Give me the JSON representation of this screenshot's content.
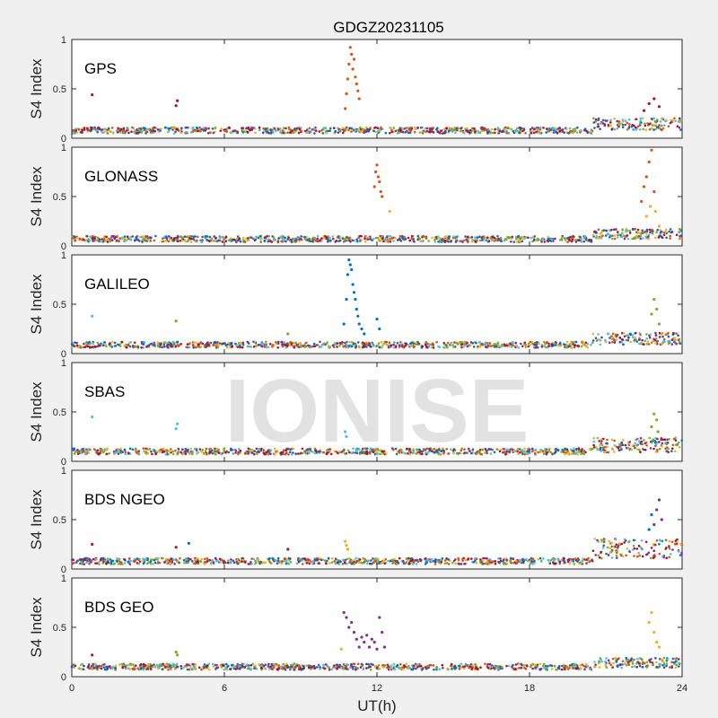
{
  "figure": {
    "title": "GDGZ20231105",
    "watermark": "IONISE"
  },
  "colors": [
    "#0072bd",
    "#d95319",
    "#edb120",
    "#7e2f8e",
    "#77ac30",
    "#4dbeee",
    "#a2142f"
  ],
  "chart_data": [
    {
      "type": "scatter",
      "panel": "GPS",
      "ylabel": "S4 Index",
      "xlabel": "",
      "xlim": [
        0,
        24
      ],
      "ylim": [
        0,
        1
      ],
      "xticks": [
        0,
        6,
        12,
        18,
        24
      ],
      "xtick_labels": [
        "",
        "",
        "",
        "",
        ""
      ],
      "yticks": [
        0,
        0.5,
        1
      ],
      "ytick_labels": [
        "0",
        "0.5",
        "1"
      ],
      "baseline": 0.08,
      "tail": {
        "start": 20.5,
        "level": 0.14,
        "spread": 0.12
      },
      "series": [
        {
          "color_index": 1,
          "x": [
            10.75,
            10.8,
            10.85,
            10.9,
            10.95,
            11.0,
            11.05,
            11.1,
            11.15,
            11.2,
            11.25,
            11.3
          ],
          "y": [
            0.3,
            0.45,
            0.6,
            0.75,
            0.92,
            0.85,
            0.7,
            0.8,
            0.62,
            0.55,
            0.48,
            0.4
          ]
        },
        {
          "color_index": 6,
          "x": [
            0.8,
            4.1,
            4.15,
            22.5,
            22.7,
            22.9,
            23.1
          ],
          "y": [
            0.44,
            0.33,
            0.38,
            0.28,
            0.35,
            0.4,
            0.32
          ]
        }
      ]
    },
    {
      "type": "scatter",
      "panel": "GLONASS",
      "ylabel": "S4 Index",
      "xlabel": "",
      "xlim": [
        0,
        24
      ],
      "ylim": [
        0,
        1
      ],
      "xticks": [
        0,
        6,
        12,
        18,
        24
      ],
      "xtick_labels": [
        "",
        "",
        "",
        "",
        ""
      ],
      "yticks": [
        0,
        0.5,
        1
      ],
      "ytick_labels": [
        "0",
        "0.5",
        "1"
      ],
      "baseline": 0.07,
      "tail": {
        "start": 20.5,
        "level": 0.12,
        "spread": 0.1
      },
      "series": [
        {
          "color_index": 1,
          "x": [
            11.9,
            11.95,
            12.0,
            12.05,
            12.1,
            12.15,
            12.2,
            22.4,
            22.5,
            22.6,
            22.7,
            22.8,
            22.9
          ],
          "y": [
            0.6,
            0.75,
            0.82,
            0.7,
            0.65,
            0.55,
            0.5,
            0.45,
            0.6,
            0.7,
            0.85,
            0.97,
            0.55
          ]
        },
        {
          "color_index": 2,
          "x": [
            12.5,
            22.6,
            22.75,
            22.95,
            23.1
          ],
          "y": [
            0.35,
            0.3,
            0.4,
            0.35,
            0.2
          ]
        }
      ]
    },
    {
      "type": "scatter",
      "panel": "GALILEO",
      "ylabel": "S4 Index",
      "xlabel": "",
      "xlim": [
        0,
        24
      ],
      "ylim": [
        0,
        1
      ],
      "xticks": [
        0,
        6,
        12,
        18,
        24
      ],
      "xtick_labels": [
        "",
        "",
        "",
        "",
        ""
      ],
      "yticks": [
        0,
        0.5,
        1
      ],
      "ytick_labels": [
        "0",
        "0.5",
        "1"
      ],
      "baseline": 0.09,
      "tail": {
        "start": 20.5,
        "level": 0.15,
        "spread": 0.12
      },
      "series": [
        {
          "color_index": 0,
          "x": [
            10.7,
            10.8,
            10.85,
            10.9,
            10.95,
            11.0,
            11.05,
            11.1,
            11.15,
            11.2,
            11.25,
            11.3,
            11.4,
            11.5,
            12.0,
            12.1
          ],
          "y": [
            0.3,
            0.55,
            0.8,
            0.95,
            0.9,
            0.85,
            0.7,
            0.62,
            0.55,
            0.45,
            0.38,
            0.3,
            0.25,
            0.2,
            0.35,
            0.25
          ]
        },
        {
          "color_index": 4,
          "x": [
            4.1,
            8.5,
            22.8,
            22.9,
            23.0,
            23.1
          ],
          "y": [
            0.33,
            0.2,
            0.4,
            0.55,
            0.45,
            0.3
          ]
        },
        {
          "color_index": 5,
          "x": [
            0.8
          ],
          "y": [
            0.38
          ]
        }
      ]
    },
    {
      "type": "scatter",
      "panel": "SBAS",
      "ylabel": "S4 Index",
      "xlabel": "",
      "xlim": [
        0,
        24
      ],
      "ylim": [
        0,
        1
      ],
      "xticks": [
        0,
        6,
        12,
        18,
        24
      ],
      "xtick_labels": [
        "",
        "",
        "",
        "",
        ""
      ],
      "yticks": [
        0,
        0.5,
        1
      ],
      "ytick_labels": [
        "0",
        "0.5",
        "1"
      ],
      "baseline": 0.1,
      "tail": {
        "start": 20.5,
        "level": 0.15,
        "spread": 0.15
      },
      "series": [
        {
          "color_index": 5,
          "x": [
            0.8,
            4.1,
            4.15,
            10.75,
            10.8
          ],
          "y": [
            0.45,
            0.33,
            0.38,
            0.3,
            0.25
          ]
        },
        {
          "color_index": 4,
          "x": [
            22.8,
            22.9,
            23.0,
            23.05
          ],
          "y": [
            0.35,
            0.48,
            0.42,
            0.3
          ]
        }
      ]
    },
    {
      "type": "scatter",
      "panel": "BDS NGEO",
      "ylabel": "S4 Index",
      "xlabel": "",
      "xlim": [
        0,
        24
      ],
      "ylim": [
        0,
        1
      ],
      "xticks": [
        0,
        6,
        12,
        18,
        24
      ],
      "xtick_labels": [
        "",
        "",
        "",
        "",
        ""
      ],
      "yticks": [
        0,
        0.5,
        1
      ],
      "ytick_labels": [
        "0",
        "0.5",
        "1"
      ],
      "baseline": 0.08,
      "tail": {
        "start": 20.5,
        "level": 0.18,
        "spread": 0.2
      },
      "series": [
        {
          "color_index": 6,
          "x": [
            0.8,
            4.1,
            8.5
          ],
          "y": [
            0.25,
            0.22,
            0.2
          ]
        },
        {
          "color_index": 2,
          "x": [
            10.75,
            10.8,
            10.85
          ],
          "y": [
            0.28,
            0.24,
            0.2
          ]
        },
        {
          "color_index": 3,
          "x": [
            22.9,
            23.0,
            23.1,
            23.2
          ],
          "y": [
            0.45,
            0.6,
            0.7,
            0.5
          ]
        },
        {
          "color_index": 0,
          "x": [
            4.6,
            22.7,
            22.8
          ],
          "y": [
            0.26,
            0.4,
            0.55
          ]
        }
      ]
    },
    {
      "type": "scatter",
      "panel": "BDS GEO",
      "ylabel": "S4 Index",
      "xlabel": "UT(h)",
      "xlim": [
        0,
        24
      ],
      "ylim": [
        0,
        1
      ],
      "xticks": [
        0,
        6,
        12,
        18,
        24
      ],
      "xtick_labels": [
        "0",
        "6",
        "12",
        "18",
        "24"
      ],
      "yticks": [
        0,
        0.5,
        1
      ],
      "ytick_labels": [
        "0",
        "0.5",
        "1"
      ],
      "baseline": 0.1,
      "tail": {
        "start": 20.5,
        "level": 0.15,
        "spread": 0.1
      },
      "series": [
        {
          "color_index": 3,
          "x": [
            10.7,
            10.8,
            10.9,
            11.0,
            11.1,
            11.2,
            11.3,
            11.4,
            11.5,
            11.6,
            11.7,
            11.8,
            11.9,
            12.0,
            12.1,
            12.2,
            12.3
          ],
          "y": [
            0.65,
            0.6,
            0.5,
            0.55,
            0.45,
            0.38,
            0.3,
            0.4,
            0.35,
            0.42,
            0.3,
            0.38,
            0.35,
            0.28,
            0.6,
            0.45,
            0.3
          ]
        },
        {
          "color_index": 2,
          "x": [
            10.6,
            22.7,
            22.8,
            22.9,
            23.0,
            23.1
          ],
          "y": [
            0.28,
            0.55,
            0.65,
            0.45,
            0.35,
            0.3
          ]
        },
        {
          "color_index": 4,
          "x": [
            4.1,
            4.15
          ],
          "y": [
            0.25,
            0.22
          ]
        },
        {
          "color_index": 6,
          "x": [
            0.8
          ],
          "y": [
            0.22
          ]
        }
      ]
    }
  ]
}
